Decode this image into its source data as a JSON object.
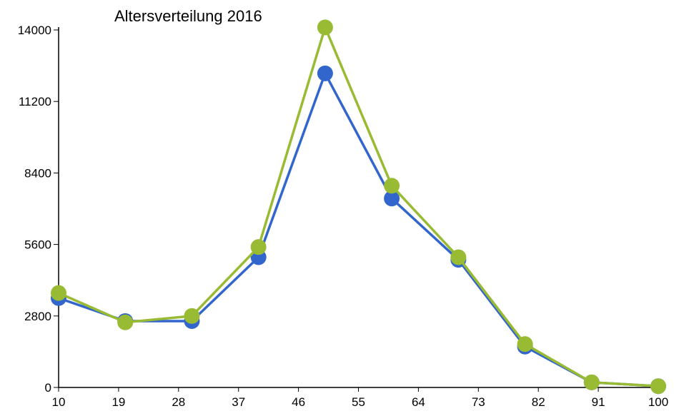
{
  "chart_data": {
    "type": "line",
    "title": "Altersverteilung 2016",
    "x_ticks": [
      "10",
      "19",
      "28",
      "37",
      "46",
      "55",
      "64",
      "73",
      "82",
      "91",
      "100"
    ],
    "y_ticks": [
      "0",
      "2800",
      "5600",
      "8400",
      "11200",
      "14000"
    ],
    "xlim": [
      10,
      100
    ],
    "ylim": [
      0,
      14000
    ],
    "grid": false,
    "legend": "none",
    "x": [
      10,
      20,
      30,
      40,
      50,
      60,
      70,
      80,
      90,
      100
    ],
    "series": [
      {
        "color": "#3366cc",
        "values": [
          3500,
          2600,
          2600,
          5100,
          12300,
          7400,
          5000,
          1600,
          200,
          50
        ]
      },
      {
        "color": "#99bb33",
        "values": [
          3700,
          2550,
          2800,
          5500,
          14100,
          7900,
          5100,
          1700,
          200,
          50
        ]
      }
    ]
  }
}
